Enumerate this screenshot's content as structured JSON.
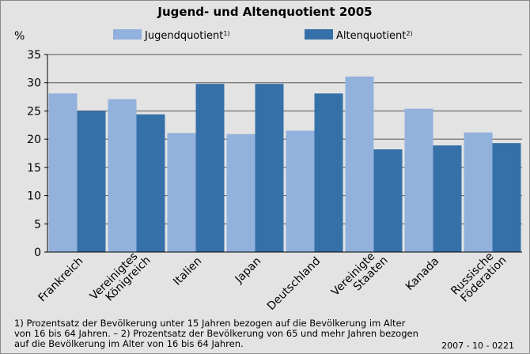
{
  "chart_data": {
    "type": "bar",
    "title": "Jugend- und Altenquotient 2005",
    "y_label": "%",
    "categories": [
      "Frankreich",
      "Vereinigtes Königreich",
      "Italien",
      "Japan",
      "Deutschland",
      "Vereinigte Staaten",
      "Kanada",
      "Russische Föderation"
    ],
    "series": [
      {
        "name": "Jugendquotient",
        "name_note": "1)",
        "color": "#92b1dd",
        "values": [
          28.1,
          27.1,
          21.1,
          20.9,
          21.5,
          31.1,
          25.4,
          21.2
        ]
      },
      {
        "name": "Altenquotient",
        "name_note": "2)",
        "color": "#3670a8",
        "values": [
          25.0,
          24.4,
          29.8,
          29.8,
          28.1,
          18.2,
          18.9,
          19.3
        ]
      }
    ],
    "ylim": [
      0,
      35
    ],
    "yticks": [
      0,
      5,
      10,
      15,
      20,
      25,
      30,
      35
    ],
    "grid": true,
    "footnote": [
      "1) Prozentsatz der Bevölkerung unter 15 Jahren bezogen auf die Bevölkerung im Alter",
      "von 16 bis 64 Jahren. – 2) Prozentsatz der Bevölkerung von 65 und mehr Jahren bezogen",
      "auf die Bevölkerung im Alter von 16 bis 64 Jahren."
    ],
    "source_code": "2007 - 10 - 0221"
  }
}
